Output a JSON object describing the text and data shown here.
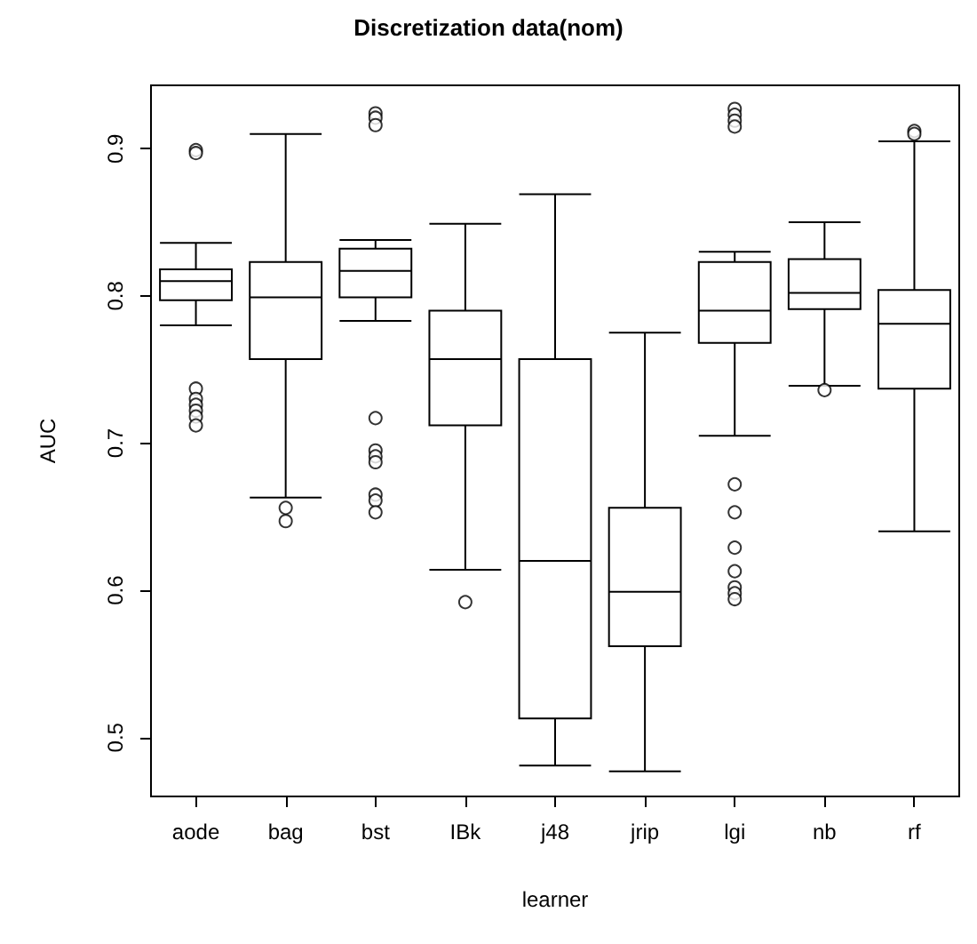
{
  "chart_data": {
    "type": "box",
    "title": "Discretization data(nom)",
    "xlabel": "learner",
    "ylabel": "AUC",
    "categories": [
      "aode",
      "bag",
      "bst",
      "IBk",
      "j48",
      "jrip",
      "lgi",
      "nb",
      "rf"
    ],
    "ylim": [
      0.46,
      0.943
    ],
    "yticks": [
      0.5,
      0.6,
      0.7,
      0.8,
      0.9
    ],
    "grid": false,
    "color": "#000000",
    "boxes": [
      {
        "low": 0.78,
        "q1": 0.797,
        "median": 0.81,
        "q3": 0.818,
        "high": 0.836,
        "outliers": [
          0.899,
          0.897,
          0.737,
          0.73,
          0.726,
          0.722,
          0.718,
          0.712
        ]
      },
      {
        "low": 0.663,
        "q1": 0.757,
        "median": 0.799,
        "q3": 0.823,
        "high": 0.91,
        "outliers": [
          0.656,
          0.647
        ]
      },
      {
        "low": 0.783,
        "q1": 0.799,
        "median": 0.817,
        "q3": 0.832,
        "high": 0.838,
        "outliers": [
          0.924,
          0.921,
          0.916,
          0.717,
          0.695,
          0.691,
          0.687,
          0.665,
          0.661,
          0.653
        ]
      },
      {
        "low": 0.614,
        "q1": 0.712,
        "median": 0.757,
        "q3": 0.79,
        "high": 0.849,
        "outliers": [
          0.592
        ]
      },
      {
        "low": 0.481,
        "q1": 0.513,
        "median": 0.62,
        "q3": 0.757,
        "high": 0.869
      },
      {
        "low": 0.477,
        "q1": 0.562,
        "median": 0.599,
        "q3": 0.656,
        "high": 0.775
      },
      {
        "low": 0.705,
        "q1": 0.768,
        "median": 0.79,
        "q3": 0.823,
        "high": 0.83,
        "outliers": [
          0.927,
          0.923,
          0.919,
          0.915,
          0.672,
          0.653,
          0.629,
          0.613,
          0.602,
          0.598,
          0.594
        ]
      },
      {
        "low": 0.739,
        "q1": 0.791,
        "median": 0.802,
        "q3": 0.825,
        "high": 0.85,
        "outliers": [
          0.736
        ]
      },
      {
        "low": 0.64,
        "q1": 0.737,
        "median": 0.781,
        "q3": 0.804,
        "high": 0.905,
        "outliers": [
          0.912,
          0.91
        ]
      }
    ]
  }
}
